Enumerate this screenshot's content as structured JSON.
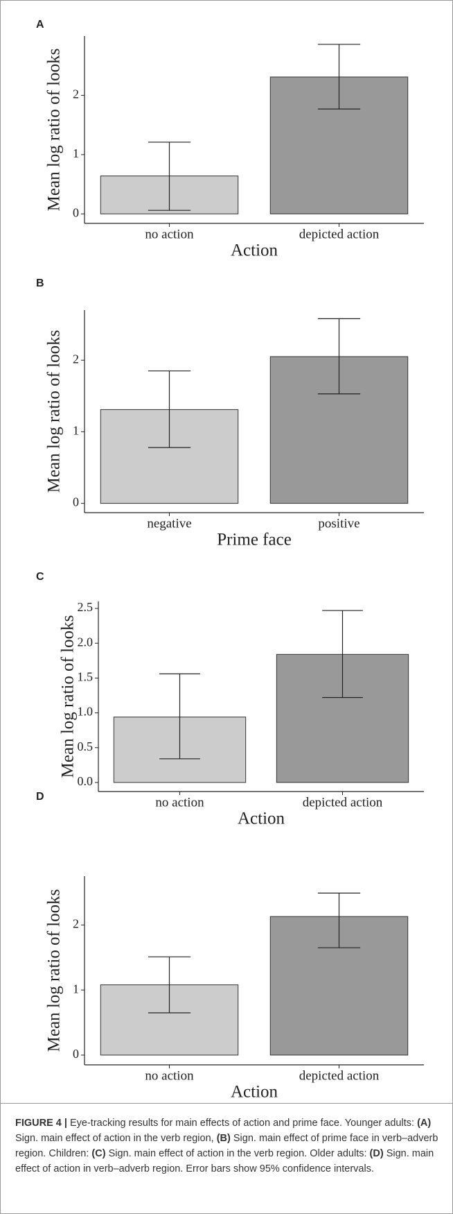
{
  "chart_data": [
    {
      "type": "bar",
      "panel": "A",
      "x_label": "Action",
      "y_label": "Mean log ratio of looks",
      "categories": [
        "no action",
        "depicted action"
      ],
      "values": [
        0.64,
        2.31
      ],
      "ci_low": [
        0.06,
        1.77
      ],
      "ci_high": [
        1.21,
        2.86
      ],
      "colors": [
        "#cccccc",
        "#999999"
      ],
      "ylim": [
        -0.16,
        3.0
      ],
      "yticks": [
        0,
        1,
        2
      ]
    },
    {
      "type": "bar",
      "panel": "B",
      "x_label": "Prime face",
      "y_label": "Mean log ratio of looks",
      "categories": [
        "negative",
        "positive"
      ],
      "values": [
        1.31,
        2.05
      ],
      "ci_low": [
        0.78,
        1.53
      ],
      "ci_high": [
        1.85,
        2.58
      ],
      "colors": [
        "#cccccc",
        "#999999"
      ],
      "ylim": [
        -0.13,
        2.7
      ],
      "yticks": [
        0,
        1,
        2
      ]
    },
    {
      "type": "bar",
      "panel": "C",
      "x_label": "Action",
      "y_label": "Mean log ratio of looks",
      "categories": [
        "no action",
        "depicted action"
      ],
      "values": [
        0.94,
        1.84
      ],
      "ci_low": [
        0.34,
        1.22
      ],
      "ci_high": [
        1.56,
        2.47
      ],
      "colors": [
        "#cccccc",
        "#999999"
      ],
      "ylim": [
        -0.13,
        2.6
      ],
      "yticks": [
        {
          "value": 0,
          "label": "0.0"
        },
        0.5,
        {
          "value": 1,
          "label": "1.0"
        },
        1.5,
        {
          "value": 2,
          "label": "2.0"
        },
        2.5
      ]
    },
    {
      "type": "bar",
      "panel": "D",
      "x_label": "Action",
      "y_label": "Mean log ratio of looks",
      "categories": [
        "no action",
        "depicted action"
      ],
      "values": [
        1.08,
        2.13
      ],
      "ci_low": [
        0.65,
        1.65
      ],
      "ci_high": [
        1.51,
        2.49
      ],
      "colors": [
        "#cccccc",
        "#999999"
      ],
      "ylim": [
        -0.15,
        2.75
      ],
      "yticks": [
        0,
        1,
        2
      ]
    }
  ],
  "caption": {
    "segments": [
      {
        "text": "FIGURE 4 |",
        "bold": true
      },
      {
        "text": " Eye-tracking results for main effects of action and prime face. Younger adults: ",
        "bold": false
      },
      {
        "text": "(A)",
        "bold": true
      },
      {
        "text": " Sign. main effect of action in the verb region, ",
        "bold": false
      },
      {
        "text": "(B)",
        "bold": true
      },
      {
        "text": " Sign. main effect of prime face in verb–adverb region. Children: ",
        "bold": false
      },
      {
        "text": "(C)",
        "bold": true
      },
      {
        "text": " Sign. main effect of action in the verb region. Older adults: ",
        "bold": false
      },
      {
        "text": "(D)",
        "bold": true
      },
      {
        "text": " Sign. main effect of action in verb–adverb region. Error bars show 95% confidence intervals.",
        "bold": false
      }
    ]
  }
}
